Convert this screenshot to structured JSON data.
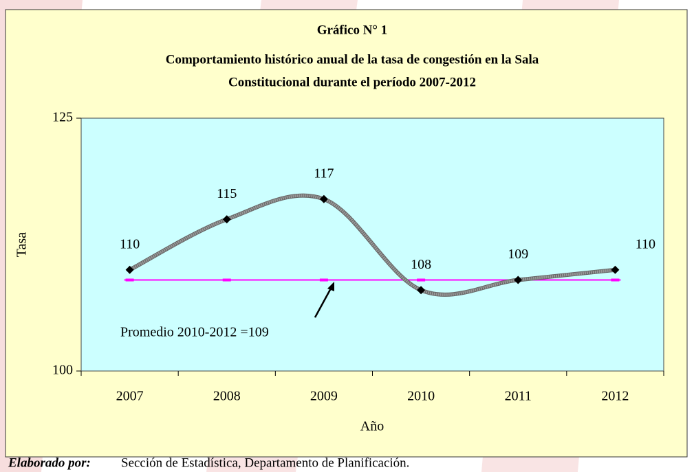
{
  "chart_data": {
    "type": "line",
    "title": [
      "Gráfico N° 1",
      "Comportamiento histórico anual  de la tasa de congestión en la Sala",
      "Constitucional durante el período 2007-2012"
    ],
    "x_label": "Año",
    "y_label": "Tasa",
    "categories": [
      "2007",
      "2008",
      "2009",
      "2010",
      "2011",
      "2012"
    ],
    "series": [
      {
        "name": "Tasa",
        "color": "#999999",
        "values": [
          110,
          115,
          117,
          108,
          109,
          110
        ]
      }
    ],
    "ylim": [
      100,
      125
    ],
    "yticks": [
      100,
      125
    ],
    "smooth": true,
    "average": {
      "value": 109,
      "label": "Promedio 2010-2012 =109",
      "color": "#ff00ff"
    },
    "source": {
      "label": "Elaborado por:",
      "text": "Sección de Estadística, Departamento de Planificación."
    }
  }
}
